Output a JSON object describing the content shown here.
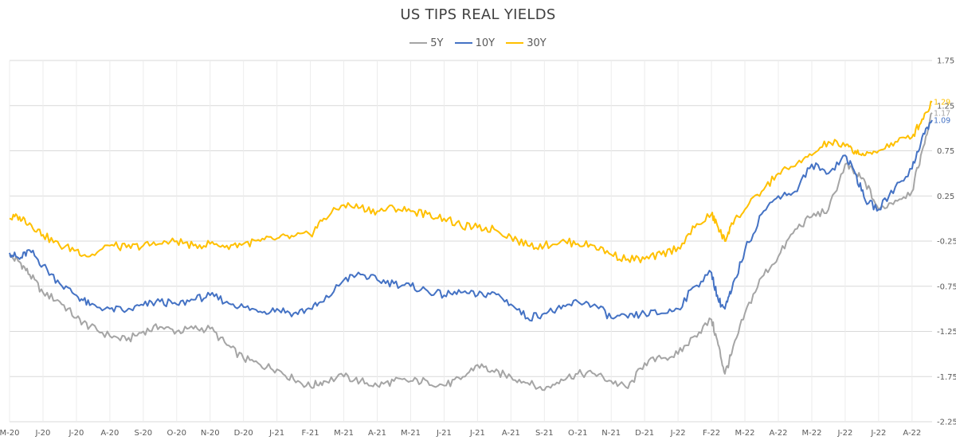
{
  "chart_data": {
    "type": "line",
    "title": "US TIPS REAL YIELDS",
    "xlabel": "",
    "ylabel": "",
    "ylim": [
      -2.25,
      1.75
    ],
    "y_ticks": [
      "1.75",
      "1.25",
      "0.75",
      "0.25",
      "-0.25",
      "-0.75",
      "-1.25",
      "-1.75",
      "-2.25"
    ],
    "y_tick_values": [
      1.75,
      1.25,
      0.75,
      0.25,
      -0.25,
      -0.75,
      -1.25,
      -1.75,
      -2.25
    ],
    "x_ticks": [
      "M-20",
      "J-20",
      "J-20",
      "A-20",
      "S-20",
      "O-20",
      "N-20",
      "D-20",
      "J-21",
      "F-21",
      "M-21",
      "A-21",
      "M-21",
      "J-21",
      "J-21",
      "A-21",
      "S-21",
      "O-21",
      "N-21",
      "D-21",
      "J-22",
      "F-22",
      "M-22",
      "A-22",
      "M-22",
      "J-22",
      "J-22",
      "A-22"
    ],
    "grid": "horizontal and vertical",
    "legend_position": "top-center",
    "x_range": [
      0,
      27.6
    ],
    "series": [
      {
        "name": "5Y",
        "color": "#A5A5A5",
        "end_label": "1.17",
        "x": [
          0,
          0.3,
          0.6,
          1,
          1.5,
          2,
          2.4,
          3,
          3.5,
          4,
          4.5,
          5,
          5.5,
          6,
          6.5,
          7,
          7.5,
          8,
          8.5,
          9,
          9.4,
          10,
          10.5,
          11,
          11.5,
          12,
          12.5,
          13,
          13.5,
          14,
          14.5,
          15,
          15.5,
          16,
          16.5,
          17,
          17.5,
          18,
          18.5,
          19,
          19.5,
          20,
          20.5,
          21,
          21.2,
          21.4,
          21.6,
          22,
          22.5,
          23,
          23.5,
          24,
          24.5,
          25,
          25.3,
          25.6,
          26,
          26.5,
          27,
          27.3,
          27.6
        ],
        "y": [
          -0.42,
          -0.48,
          -0.62,
          -0.82,
          -0.92,
          -1.1,
          -1.2,
          -1.3,
          -1.35,
          -1.25,
          -1.2,
          -1.25,
          -1.22,
          -1.22,
          -1.4,
          -1.55,
          -1.62,
          -1.67,
          -1.78,
          -1.86,
          -1.8,
          -1.75,
          -1.8,
          -1.85,
          -1.8,
          -1.8,
          -1.8,
          -1.85,
          -1.78,
          -1.62,
          -1.7,
          -1.75,
          -1.82,
          -1.9,
          -1.78,
          -1.72,
          -1.72,
          -1.8,
          -1.88,
          -1.6,
          -1.55,
          -1.5,
          -1.3,
          -1.12,
          -1.4,
          -1.72,
          -1.5,
          -1.05,
          -0.65,
          -0.42,
          -0.12,
          0.02,
          0.1,
          0.6,
          0.5,
          0.4,
          0.1,
          0.2,
          0.3,
          0.75,
          1.17
        ]
      },
      {
        "name": "10Y",
        "color": "#4472C4",
        "end_label": "1.09",
        "x": [
          0,
          0.3,
          0.6,
          1,
          1.5,
          2,
          2.4,
          3,
          3.5,
          4,
          4.5,
          5,
          5.5,
          6,
          6.5,
          7,
          7.5,
          8,
          8.5,
          9,
          9.4,
          10,
          10.5,
          11,
          11.5,
          12,
          12.5,
          13,
          13.5,
          14,
          14.5,
          15,
          15.5,
          16,
          16.5,
          17,
          17.5,
          18,
          18.5,
          19,
          19.5,
          20,
          20.5,
          21,
          21.2,
          21.4,
          21.6,
          22,
          22.5,
          23,
          23.5,
          24,
          24.5,
          25,
          25.3,
          25.6,
          26,
          26.5,
          27,
          27.3,
          27.6
        ],
        "y": [
          -0.38,
          -0.45,
          -0.35,
          -0.52,
          -0.72,
          -0.85,
          -0.96,
          -1.0,
          -1.02,
          -0.96,
          -0.92,
          -0.95,
          -0.9,
          -0.85,
          -0.92,
          -0.98,
          -1.03,
          -1.0,
          -1.05,
          -1.0,
          -0.92,
          -0.68,
          -0.62,
          -0.68,
          -0.72,
          -0.75,
          -0.8,
          -0.85,
          -0.82,
          -0.85,
          -0.82,
          -0.95,
          -1.1,
          -1.05,
          -1.0,
          -0.92,
          -0.95,
          -1.1,
          -1.1,
          -1.05,
          -1.05,
          -1.0,
          -0.75,
          -0.6,
          -0.9,
          -1.0,
          -0.8,
          -0.35,
          0.05,
          0.25,
          0.3,
          0.6,
          0.5,
          0.7,
          0.5,
          0.2,
          0.1,
          0.35,
          0.55,
          0.9,
          1.09
        ]
      },
      {
        "name": "30Y",
        "color": "#FFC000",
        "end_label": "1.29",
        "x": [
          0,
          0.3,
          0.6,
          1,
          1.5,
          2,
          2.4,
          3,
          3.5,
          4,
          4.5,
          5,
          5.5,
          6,
          6.5,
          7,
          7.5,
          8,
          8.5,
          9,
          9.4,
          10,
          10.5,
          11,
          11.5,
          12,
          12.5,
          13,
          13.5,
          14,
          14.5,
          15,
          15.5,
          16,
          16.5,
          17,
          17.5,
          18,
          18.5,
          19,
          19.5,
          20,
          20.5,
          21,
          21.2,
          21.4,
          21.6,
          22,
          22.5,
          23,
          23.5,
          24,
          24.5,
          25,
          25.3,
          25.6,
          26,
          26.5,
          27,
          27.3,
          27.6
        ],
        "y": [
          0.0,
          0.02,
          -0.05,
          -0.18,
          -0.3,
          -0.35,
          -0.42,
          -0.3,
          -0.32,
          -0.3,
          -0.28,
          -0.25,
          -0.3,
          -0.28,
          -0.3,
          -0.28,
          -0.25,
          -0.22,
          -0.2,
          -0.18,
          0.0,
          0.15,
          0.12,
          0.08,
          0.12,
          0.08,
          0.05,
          0.0,
          -0.08,
          -0.1,
          -0.12,
          -0.2,
          -0.3,
          -0.3,
          -0.25,
          -0.28,
          -0.3,
          -0.4,
          -0.45,
          -0.45,
          -0.4,
          -0.32,
          -0.1,
          0.05,
          -0.1,
          -0.25,
          -0.05,
          0.1,
          0.3,
          0.5,
          0.58,
          0.7,
          0.85,
          0.8,
          0.75,
          0.7,
          0.75,
          0.85,
          0.9,
          1.1,
          1.29
        ]
      }
    ]
  }
}
